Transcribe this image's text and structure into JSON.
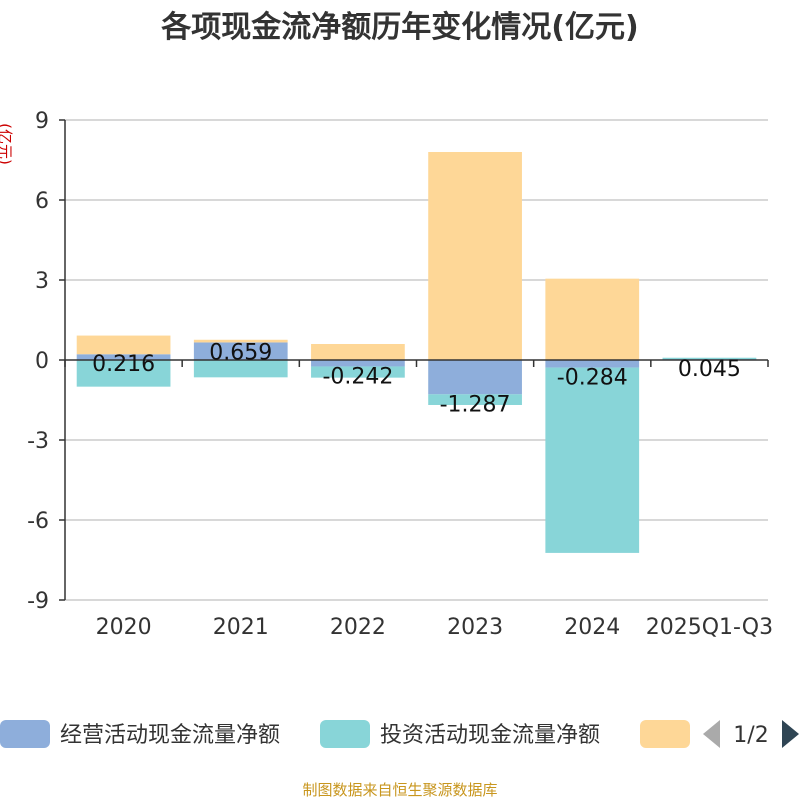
{
  "chart_data": {
    "type": "bar",
    "stacked": true,
    "title": "各项现金流净额历年变化情况(亿元)",
    "ylabel": "(亿元)",
    "ylim": [
      -9,
      9
    ],
    "yticks": [
      9,
      6,
      3,
      0,
      -3,
      -6,
      -9
    ],
    "grid": true,
    "legend_position": "bottom",
    "categories": [
      "2020",
      "2021",
      "2022",
      "2023",
      "2024",
      "2025Q1-Q3"
    ],
    "series": [
      {
        "name": "经营活动现金流量净额",
        "color": "#8eaedb",
        "values": [
          0.216,
          0.659,
          -0.242,
          -1.287,
          -0.284,
          0.045
        ]
      },
      {
        "name": "投资活动现金流量净额",
        "color": "#88d5d8",
        "values": [
          -1.0,
          -0.65,
          -0.42,
          -0.4,
          -6.95,
          0.04
        ]
      },
      {
        "name": "",
        "color": "#fed797",
        "values": [
          0.7,
          0.1,
          0.6,
          7.8,
          3.05,
          0.0
        ]
      }
    ],
    "data_labels": [
      "0.216",
      "0.659",
      "-0.242",
      "-1.287",
      "-0.284",
      "0.045"
    ]
  },
  "legend": {
    "items": [
      {
        "label": "经营活动现金流量净额",
        "color": "#8eaedb"
      },
      {
        "label": "投资活动现金流量净额",
        "color": "#88d5d8"
      },
      {
        "label": "",
        "color": "#fed797"
      }
    ],
    "pager": "1/2",
    "prev_color": "#aaaaaa",
    "next_color": "#2f4554"
  },
  "source": "制图数据来自恒生聚源数据库"
}
